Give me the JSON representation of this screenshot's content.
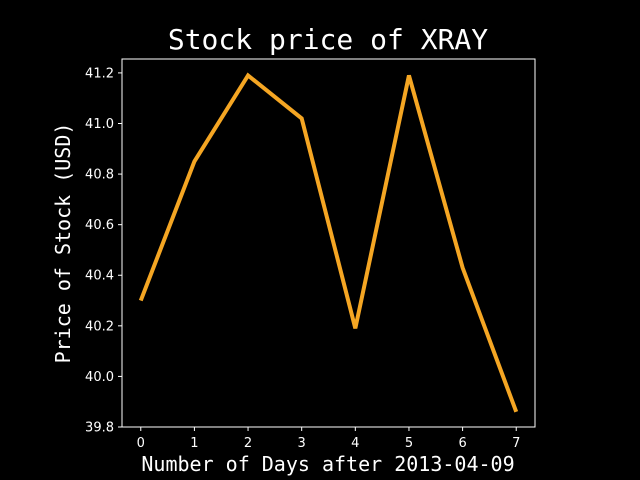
{
  "chart_data": {
    "type": "line",
    "title": "Stock price of XRAY",
    "xlabel": "Number of Days after 2013-04-09",
    "ylabel": "Price of Stock (USD)",
    "x": [
      0,
      1,
      2,
      3,
      4,
      5,
      6,
      7
    ],
    "series": [
      {
        "values": [
          40.3,
          40.85,
          41.19,
          41.02,
          40.19,
          41.19,
          40.43,
          39.86
        ],
        "color": "#f5a623"
      }
    ],
    "xlim": [
      -0.35,
      7.35
    ],
    "ylim": [
      39.8,
      41.255
    ],
    "xticks": [
      "0",
      "1",
      "2",
      "3",
      "4",
      "5",
      "6",
      "7"
    ],
    "yticks": [
      "39.8",
      "40.0",
      "40.2",
      "40.4",
      "40.6",
      "40.8",
      "41.0",
      "41.2"
    ],
    "grid": false,
    "background": "#000000",
    "foreground": "#ffffff"
  }
}
